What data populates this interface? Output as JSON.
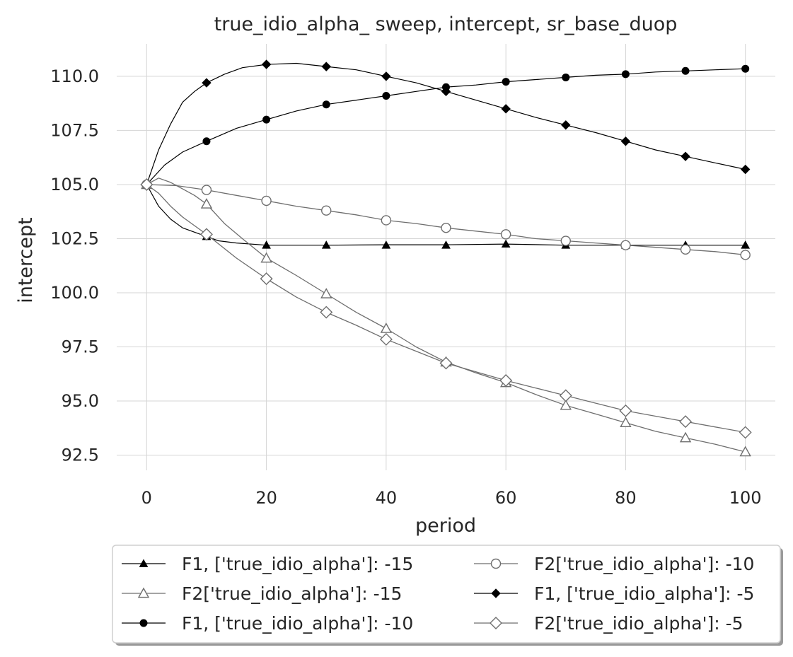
{
  "chart_data": {
    "type": "line",
    "title": "true_idio_alpha_ sweep, intercept, sr_base_duop",
    "xlabel": "period",
    "ylabel": "intercept",
    "xlim": [
      -5,
      105
    ],
    "ylim": [
      91.8,
      111.5
    ],
    "grid": true,
    "legend_position": "below",
    "x_ticks": [
      0,
      20,
      40,
      60,
      80,
      100
    ],
    "x_tick_labels": [
      "0",
      "20",
      "40",
      "60",
      "80",
      "100"
    ],
    "y_ticks": [
      92.5,
      95.0,
      97.5,
      100.0,
      102.5,
      105.0,
      107.5,
      110.0
    ],
    "y_tick_labels": [
      "92.5",
      "95.0",
      "97.5",
      "100.0",
      "102.5",
      "105.0",
      "107.5",
      "110.0"
    ],
    "x": [
      0,
      10,
      20,
      30,
      40,
      50,
      60,
      70,
      80,
      90,
      100
    ],
    "series": [
      {
        "name": "F1, ['true_idio_alpha']: -15",
        "marker": "triangle-filled",
        "color": "#000000",
        "values": [
          105.0,
          102.6,
          102.2,
          102.2,
          102.2,
          102.2,
          102.25,
          102.2,
          102.2,
          102.2,
          102.2
        ],
        "curve": [
          [
            0,
            105.0
          ],
          [
            2,
            104.0
          ],
          [
            4,
            103.4
          ],
          [
            6,
            103.0
          ],
          [
            8,
            102.8
          ],
          [
            10,
            102.6
          ],
          [
            12,
            102.4
          ],
          [
            15,
            102.3
          ],
          [
            20,
            102.2
          ],
          [
            30,
            102.2
          ],
          [
            40,
            102.22
          ],
          [
            50,
            102.22
          ],
          [
            60,
            102.25
          ],
          [
            70,
            102.2
          ],
          [
            80,
            102.2
          ],
          [
            90,
            102.2
          ],
          [
            100,
            102.2
          ]
        ]
      },
      {
        "name": "F2['true_idio_alpha']: -15",
        "marker": "triangle-open",
        "color": "#6e6e6e",
        "values": [
          105.0,
          104.1,
          101.6,
          99.95,
          98.35,
          96.8,
          95.85,
          94.8,
          94.0,
          93.3,
          92.65
        ],
        "curve": [
          [
            0,
            105.0
          ],
          [
            2,
            105.3
          ],
          [
            4,
            105.1
          ],
          [
            6,
            104.8
          ],
          [
            8,
            104.5
          ],
          [
            10,
            104.1
          ],
          [
            13,
            103.2
          ],
          [
            16,
            102.5
          ],
          [
            20,
            101.6
          ],
          [
            25,
            100.8
          ],
          [
            30,
            99.95
          ],
          [
            35,
            99.1
          ],
          [
            40,
            98.35
          ],
          [
            45,
            97.5
          ],
          [
            50,
            96.8
          ],
          [
            55,
            96.3
          ],
          [
            60,
            95.85
          ],
          [
            65,
            95.3
          ],
          [
            70,
            94.8
          ],
          [
            75,
            94.4
          ],
          [
            80,
            94.0
          ],
          [
            85,
            93.6
          ],
          [
            90,
            93.3
          ],
          [
            95,
            93.0
          ],
          [
            100,
            92.65
          ]
        ]
      },
      {
        "name": "F1, ['true_idio_alpha']: -10",
        "marker": "circle-filled",
        "color": "#000000",
        "values": [
          105.0,
          107.0,
          108.0,
          108.7,
          109.1,
          109.5,
          109.75,
          109.95,
          110.1,
          110.25,
          110.35
        ],
        "curve": [
          [
            0,
            105.0
          ],
          [
            3,
            105.9
          ],
          [
            6,
            106.5
          ],
          [
            10,
            107.0
          ],
          [
            15,
            107.6
          ],
          [
            20,
            108.0
          ],
          [
            25,
            108.4
          ],
          [
            30,
            108.7
          ],
          [
            35,
            108.9
          ],
          [
            40,
            109.1
          ],
          [
            45,
            109.3
          ],
          [
            50,
            109.5
          ],
          [
            55,
            109.6
          ],
          [
            60,
            109.75
          ],
          [
            65,
            109.85
          ],
          [
            70,
            109.95
          ],
          [
            75,
            110.05
          ],
          [
            80,
            110.1
          ],
          [
            85,
            110.2
          ],
          [
            90,
            110.25
          ],
          [
            95,
            110.3
          ],
          [
            100,
            110.35
          ]
        ]
      },
      {
        "name": "F2['true_idio_alpha']: -10",
        "marker": "circle-open",
        "color": "#6e6e6e",
        "values": [
          105.0,
          104.75,
          104.25,
          103.8,
          103.35,
          103.0,
          102.7,
          102.4,
          102.2,
          102.0,
          101.75
        ],
        "curve": [
          [
            0,
            105.0
          ],
          [
            5,
            104.95
          ],
          [
            10,
            104.75
          ],
          [
            15,
            104.5
          ],
          [
            20,
            104.25
          ],
          [
            25,
            104.0
          ],
          [
            30,
            103.8
          ],
          [
            35,
            103.6
          ],
          [
            40,
            103.35
          ],
          [
            45,
            103.2
          ],
          [
            50,
            103.0
          ],
          [
            55,
            102.85
          ],
          [
            60,
            102.7
          ],
          [
            65,
            102.5
          ],
          [
            70,
            102.4
          ],
          [
            75,
            102.3
          ],
          [
            80,
            102.2
          ],
          [
            85,
            102.1
          ],
          [
            90,
            102.0
          ],
          [
            95,
            101.9
          ],
          [
            100,
            101.75
          ]
        ]
      },
      {
        "name": "F1, ['true_idio_alpha']: -5",
        "marker": "diamond-filled",
        "color": "#000000",
        "values": [
          105.0,
          109.7,
          110.55,
          110.45,
          110.0,
          109.3,
          108.5,
          107.75,
          107.0,
          106.3,
          105.7
        ],
        "curve": [
          [
            0,
            105.0
          ],
          [
            2,
            106.6
          ],
          [
            4,
            107.8
          ],
          [
            6,
            108.8
          ],
          [
            8,
            109.3
          ],
          [
            10,
            109.7
          ],
          [
            13,
            110.1
          ],
          [
            16,
            110.4
          ],
          [
            20,
            110.55
          ],
          [
            25,
            110.6
          ],
          [
            30,
            110.45
          ],
          [
            35,
            110.3
          ],
          [
            40,
            110.0
          ],
          [
            45,
            109.7
          ],
          [
            50,
            109.3
          ],
          [
            55,
            108.9
          ],
          [
            60,
            108.5
          ],
          [
            65,
            108.1
          ],
          [
            70,
            107.75
          ],
          [
            75,
            107.4
          ],
          [
            80,
            107.0
          ],
          [
            85,
            106.6
          ],
          [
            90,
            106.3
          ],
          [
            95,
            106.0
          ],
          [
            100,
            105.7
          ]
        ]
      },
      {
        "name": "F2['true_idio_alpha']: -5",
        "marker": "diamond-open",
        "color": "#6e6e6e",
        "values": [
          105.0,
          102.7,
          100.65,
          99.1,
          97.85,
          96.75,
          95.95,
          95.25,
          94.55,
          94.05,
          93.55
        ],
        "curve": [
          [
            0,
            105.0
          ],
          [
            2,
            104.6
          ],
          [
            4,
            104.0
          ],
          [
            6,
            103.5
          ],
          [
            8,
            103.1
          ],
          [
            10,
            102.7
          ],
          [
            15,
            101.6
          ],
          [
            20,
            100.65
          ],
          [
            25,
            99.8
          ],
          [
            30,
            99.1
          ],
          [
            35,
            98.5
          ],
          [
            40,
            97.85
          ],
          [
            45,
            97.3
          ],
          [
            50,
            96.75
          ],
          [
            55,
            96.35
          ],
          [
            60,
            95.95
          ],
          [
            65,
            95.6
          ],
          [
            70,
            95.25
          ],
          [
            75,
            94.9
          ],
          [
            80,
            94.55
          ],
          [
            85,
            94.3
          ],
          [
            90,
            94.05
          ],
          [
            95,
            93.8
          ],
          [
            100,
            93.55
          ]
        ]
      }
    ]
  }
}
